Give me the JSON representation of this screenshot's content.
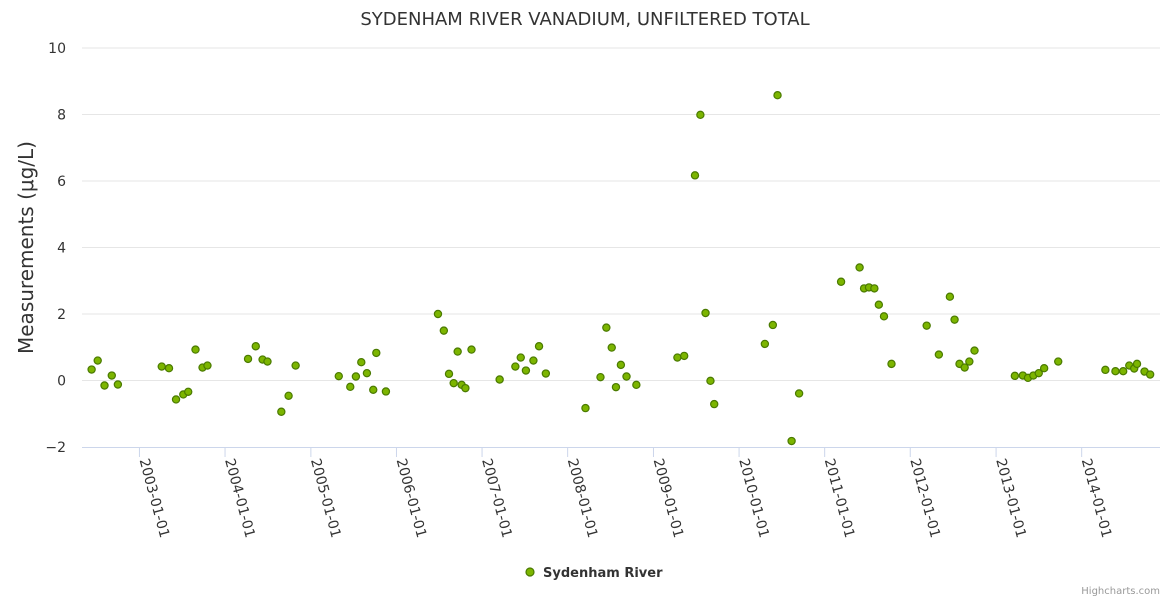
{
  "chart_data": {
    "type": "scatter",
    "title": "SYDENHAM RIVER VANADIUM, UNFILTERED TOTAL",
    "ylabel": "Measurements (μg/L)",
    "xlabel": "",
    "ylim": [
      -2,
      10
    ],
    "yticks": [
      -2,
      0,
      2,
      4,
      6,
      8,
      10
    ],
    "xlim": [
      "2002-05-01",
      "2014-12-01"
    ],
    "xticks": [
      "2003-01-01",
      "2004-01-01",
      "2005-01-01",
      "2006-01-01",
      "2007-01-01",
      "2008-01-01",
      "2009-01-01",
      "2010-01-01",
      "2011-01-01",
      "2012-01-01",
      "2013-01-01",
      "2014-01-01"
    ],
    "grid": true,
    "legend_position": "bottom-center",
    "color": "#7cb500",
    "series": [
      {
        "name": "Sydenham River",
        "points": [
          [
            "2002-06-11",
            0.33
          ],
          [
            "2002-07-07",
            0.6
          ],
          [
            "2002-08-05",
            -0.15
          ],
          [
            "2002-09-05",
            0.15
          ],
          [
            "2002-10-01",
            -0.12
          ],
          [
            "2003-04-06",
            0.42
          ],
          [
            "2003-05-07",
            0.37
          ],
          [
            "2003-06-06",
            -0.57
          ],
          [
            "2003-07-07",
            -0.42
          ],
          [
            "2003-07-28",
            -0.34
          ],
          [
            "2003-08-28",
            0.93
          ],
          [
            "2003-09-27",
            0.39
          ],
          [
            "2003-10-18",
            0.45
          ],
          [
            "2004-04-08",
            0.65
          ],
          [
            "2004-05-11",
            1.03
          ],
          [
            "2004-06-09",
            0.63
          ],
          [
            "2004-06-30",
            0.57
          ],
          [
            "2004-08-28",
            -0.94
          ],
          [
            "2004-09-28",
            -0.46
          ],
          [
            "2004-10-28",
            0.45
          ],
          [
            "2005-04-30",
            0.13
          ],
          [
            "2005-06-18",
            -0.19
          ],
          [
            "2005-07-12",
            0.12
          ],
          [
            "2005-08-04",
            0.55
          ],
          [
            "2005-08-28",
            0.22
          ],
          [
            "2005-09-24",
            -0.28
          ],
          [
            "2005-10-07",
            0.83
          ],
          [
            "2005-11-17",
            -0.33
          ],
          [
            "2006-06-27",
            2.0
          ],
          [
            "2006-07-22",
            1.5
          ],
          [
            "2006-08-13",
            0.2
          ],
          [
            "2006-09-02",
            -0.08
          ],
          [
            "2006-09-19",
            0.87
          ],
          [
            "2006-10-06",
            -0.13
          ],
          [
            "2006-10-22",
            -0.23
          ],
          [
            "2006-11-17",
            0.93
          ],
          [
            "2007-03-17",
            0.03
          ],
          [
            "2007-05-23",
            0.42
          ],
          [
            "2007-06-15",
            0.69
          ],
          [
            "2007-07-07",
            0.3
          ],
          [
            "2007-08-08",
            0.6
          ],
          [
            "2007-09-01",
            1.03
          ],
          [
            "2007-09-30",
            0.21
          ],
          [
            "2008-03-17",
            -0.83
          ],
          [
            "2008-05-20",
            0.1
          ],
          [
            "2008-06-14",
            1.59
          ],
          [
            "2008-07-07",
            0.99
          ],
          [
            "2008-07-25",
            -0.2
          ],
          [
            "2008-08-15",
            0.47
          ],
          [
            "2008-09-08",
            0.12
          ],
          [
            "2008-10-20",
            -0.13
          ],
          [
            "2009-04-13",
            0.69
          ],
          [
            "2009-05-12",
            0.74
          ],
          [
            "2009-06-27",
            6.17
          ],
          [
            "2009-07-20",
            7.99
          ],
          [
            "2009-08-11",
            2.03
          ],
          [
            "2009-09-01",
            -0.01
          ],
          [
            "2009-09-17",
            -0.71
          ],
          [
            "2010-04-21",
            1.1
          ],
          [
            "2010-05-25",
            1.67
          ],
          [
            "2010-06-14",
            8.58
          ],
          [
            "2010-08-13",
            -1.82
          ],
          [
            "2010-09-14",
            -0.39
          ],
          [
            "2011-03-12",
            2.97
          ],
          [
            "2011-05-30",
            3.4
          ],
          [
            "2011-06-18",
            2.77
          ],
          [
            "2011-07-09",
            2.8
          ],
          [
            "2011-08-01",
            2.77
          ],
          [
            "2011-08-20",
            2.28
          ],
          [
            "2011-09-11",
            1.93
          ],
          [
            "2011-10-13",
            0.5
          ],
          [
            "2012-03-11",
            1.65
          ],
          [
            "2012-05-02",
            0.78
          ],
          [
            "2012-06-18",
            2.52
          ],
          [
            "2012-07-08",
            1.83
          ],
          [
            "2012-07-29",
            0.5
          ],
          [
            "2012-08-20",
            0.39
          ],
          [
            "2012-09-09",
            0.57
          ],
          [
            "2012-10-01",
            0.9
          ],
          [
            "2013-03-22",
            0.14
          ],
          [
            "2013-04-25",
            0.15
          ],
          [
            "2013-05-17",
            0.08
          ],
          [
            "2013-06-09",
            0.15
          ],
          [
            "2013-07-02",
            0.22
          ],
          [
            "2013-07-25",
            0.37
          ],
          [
            "2013-09-23",
            0.57
          ],
          [
            "2014-04-12",
            0.32
          ],
          [
            "2014-05-25",
            0.28
          ],
          [
            "2014-06-27",
            0.28
          ],
          [
            "2014-07-23",
            0.45
          ],
          [
            "2014-08-13",
            0.36
          ],
          [
            "2014-08-25",
            0.5
          ],
          [
            "2014-09-26",
            0.27
          ],
          [
            "2014-10-20",
            0.18
          ]
        ]
      }
    ]
  },
  "credits": "Highcharts.com"
}
